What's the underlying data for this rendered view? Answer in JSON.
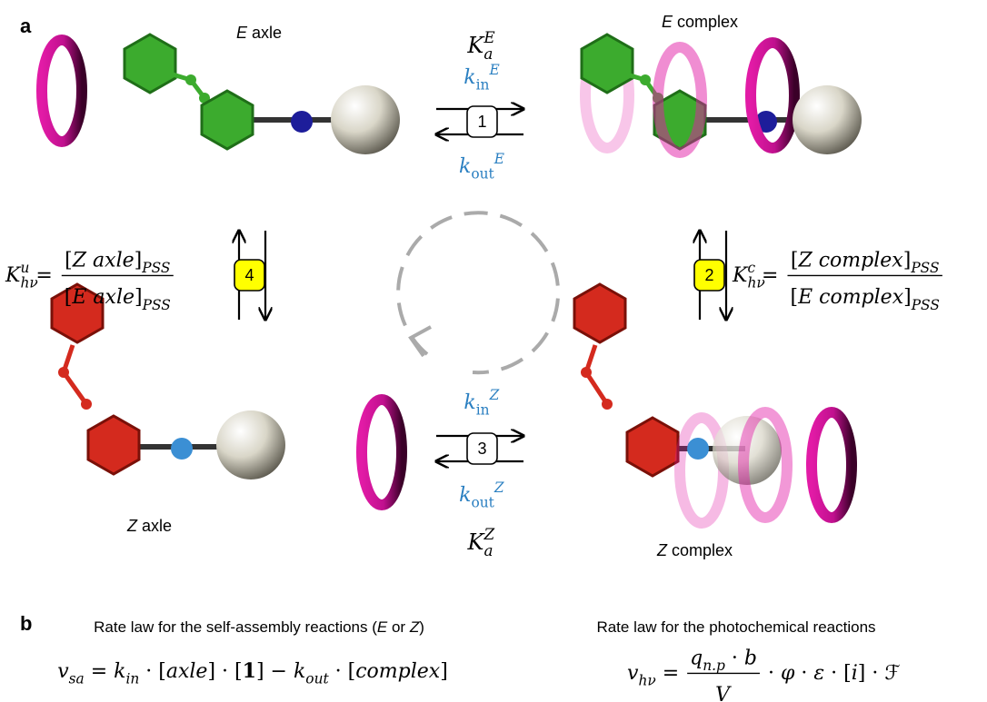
{
  "panel_a": {
    "label": "a",
    "species_labels": [
      [
        {
          "t": "E",
          "s": "i"
        },
        {
          "t": " axle",
          "s": ""
        }
      ],
      [
        {
          "t": "E",
          "s": "i"
        },
        {
          "t": " complex",
          "s": ""
        }
      ],
      [
        {
          "t": "Z",
          "s": "i"
        },
        {
          "t": " axle",
          "s": ""
        }
      ],
      [
        {
          "t": "Z",
          "s": "i"
        },
        {
          "t": " complex",
          "s": ""
        }
      ]
    ],
    "steps": [
      "1",
      "2",
      "3",
      "4"
    ],
    "association": [
      {
        "constant": [
          {
            "t": "K",
            "s": "i"
          },
          {
            "t": "a",
            "s": "i sub"
          },
          {
            "t": "E",
            "s": "i over"
          }
        ],
        "k_in": [
          {
            "t": "k",
            "s": "i"
          },
          {
            "t": "in",
            "s": "sub"
          },
          {
            "t": "E",
            "s": "i sup"
          }
        ],
        "k_out": [
          {
            "t": "k",
            "s": "i"
          },
          {
            "t": "out",
            "s": "sub"
          },
          {
            "t": "E",
            "s": "i sup"
          }
        ]
      },
      {
        "constant": [
          {
            "t": "K",
            "s": "i"
          },
          {
            "t": "a",
            "s": "i sub"
          },
          {
            "t": "Z",
            "s": "i over"
          }
        ],
        "k_in": [
          {
            "t": "k",
            "s": "i"
          },
          {
            "t": "in",
            "s": "sub"
          },
          {
            "t": "Z",
            "s": "i sup"
          }
        ],
        "k_out": [
          {
            "t": "k",
            "s": "i"
          },
          {
            "t": "out",
            "s": "sub"
          },
          {
            "t": "Z",
            "s": "i sup"
          }
        ]
      }
    ],
    "photostationary": [
      {
        "lhs": [
          {
            "t": "K",
            "s": "i"
          },
          {
            "t": "hν",
            "s": "i sub"
          },
          {
            "t": "u",
            "s": "i over"
          },
          {
            "t": " = ",
            "s": ""
          }
        ],
        "num": [
          {
            "t": "[",
            "s": ""
          },
          {
            "t": "Z axle",
            "s": "i"
          },
          {
            "t": "]",
            "s": ""
          },
          {
            "t": "PSS",
            "s": "i sub"
          }
        ],
        "den": [
          {
            "t": "[",
            "s": ""
          },
          {
            "t": "E axle",
            "s": "i"
          },
          {
            "t": "]",
            "s": ""
          },
          {
            "t": "PSS",
            "s": "i sub"
          }
        ]
      },
      {
        "lhs": [
          {
            "t": "K",
            "s": "i"
          },
          {
            "t": "hν",
            "s": "i sub"
          },
          {
            "t": "c",
            "s": "i over"
          },
          {
            "t": " = ",
            "s": ""
          }
        ],
        "num": [
          {
            "t": "[",
            "s": ""
          },
          {
            "t": "Z complex",
            "s": "i"
          },
          {
            "t": "]",
            "s": ""
          },
          {
            "t": "PSS",
            "s": "i sub"
          }
        ],
        "den": [
          {
            "t": "[",
            "s": ""
          },
          {
            "t": "E complex",
            "s": "i"
          },
          {
            "t": "]",
            "s": ""
          },
          {
            "t": "PSS",
            "s": "i sub"
          }
        ]
      }
    ]
  },
  "panel_b": {
    "label": "b",
    "self_assembly": {
      "caption": [
        {
          "t": "Rate law for the self-assembly reactions (",
          "s": ""
        },
        {
          "t": "E",
          "s": "i"
        },
        {
          "t": " or ",
          "s": ""
        },
        {
          "t": "Z",
          "s": "i"
        },
        {
          "t": ")",
          "s": ""
        }
      ],
      "equation": [
        {
          "t": "v",
          "s": "i"
        },
        {
          "t": "sa",
          "s": "i sub"
        },
        {
          "t": " = ",
          "s": ""
        },
        {
          "t": "k",
          "s": "i"
        },
        {
          "t": "in",
          "s": "i sub"
        },
        {
          "t": " · [",
          "s": ""
        },
        {
          "t": "axle",
          "s": "i"
        },
        {
          "t": "] · [",
          "s": ""
        },
        {
          "t": "1",
          "s": "b"
        },
        {
          "t": "] − ",
          "s": ""
        },
        {
          "t": "k",
          "s": "i"
        },
        {
          "t": "out",
          "s": "i sub"
        },
        {
          "t": " · [",
          "s": ""
        },
        {
          "t": "complex",
          "s": "i"
        },
        {
          "t": "]",
          "s": ""
        }
      ]
    },
    "photochemical": {
      "caption": [
        {
          "t": "Rate law for the photochemical reactions",
          "s": ""
        }
      ],
      "equation": {
        "lhs": [
          {
            "t": "v",
            "s": "i"
          },
          {
            "t": "hν",
            "s": "i sub"
          },
          {
            "t": " = ",
            "s": ""
          }
        ],
        "num": [
          {
            "t": "q",
            "s": "i"
          },
          {
            "t": "n.p",
            "s": "i sub"
          },
          {
            "t": " · ",
            "s": ""
          },
          {
            "t": "b",
            "s": "i"
          }
        ],
        "den": [
          {
            "t": "V",
            "s": "i"
          }
        ],
        "rest": [
          {
            "t": " · ",
            "s": ""
          },
          {
            "t": "φ",
            "s": "i"
          },
          {
            "t": " · ",
            "s": ""
          },
          {
            "t": "ε",
            "s": "i"
          },
          {
            "t": " · [",
            "s": ""
          },
          {
            "t": "i",
            "s": "i"
          },
          {
            "t": "] · ",
            "s": ""
          },
          {
            "t": "ℱ",
            "s": ""
          }
        ]
      }
    }
  }
}
